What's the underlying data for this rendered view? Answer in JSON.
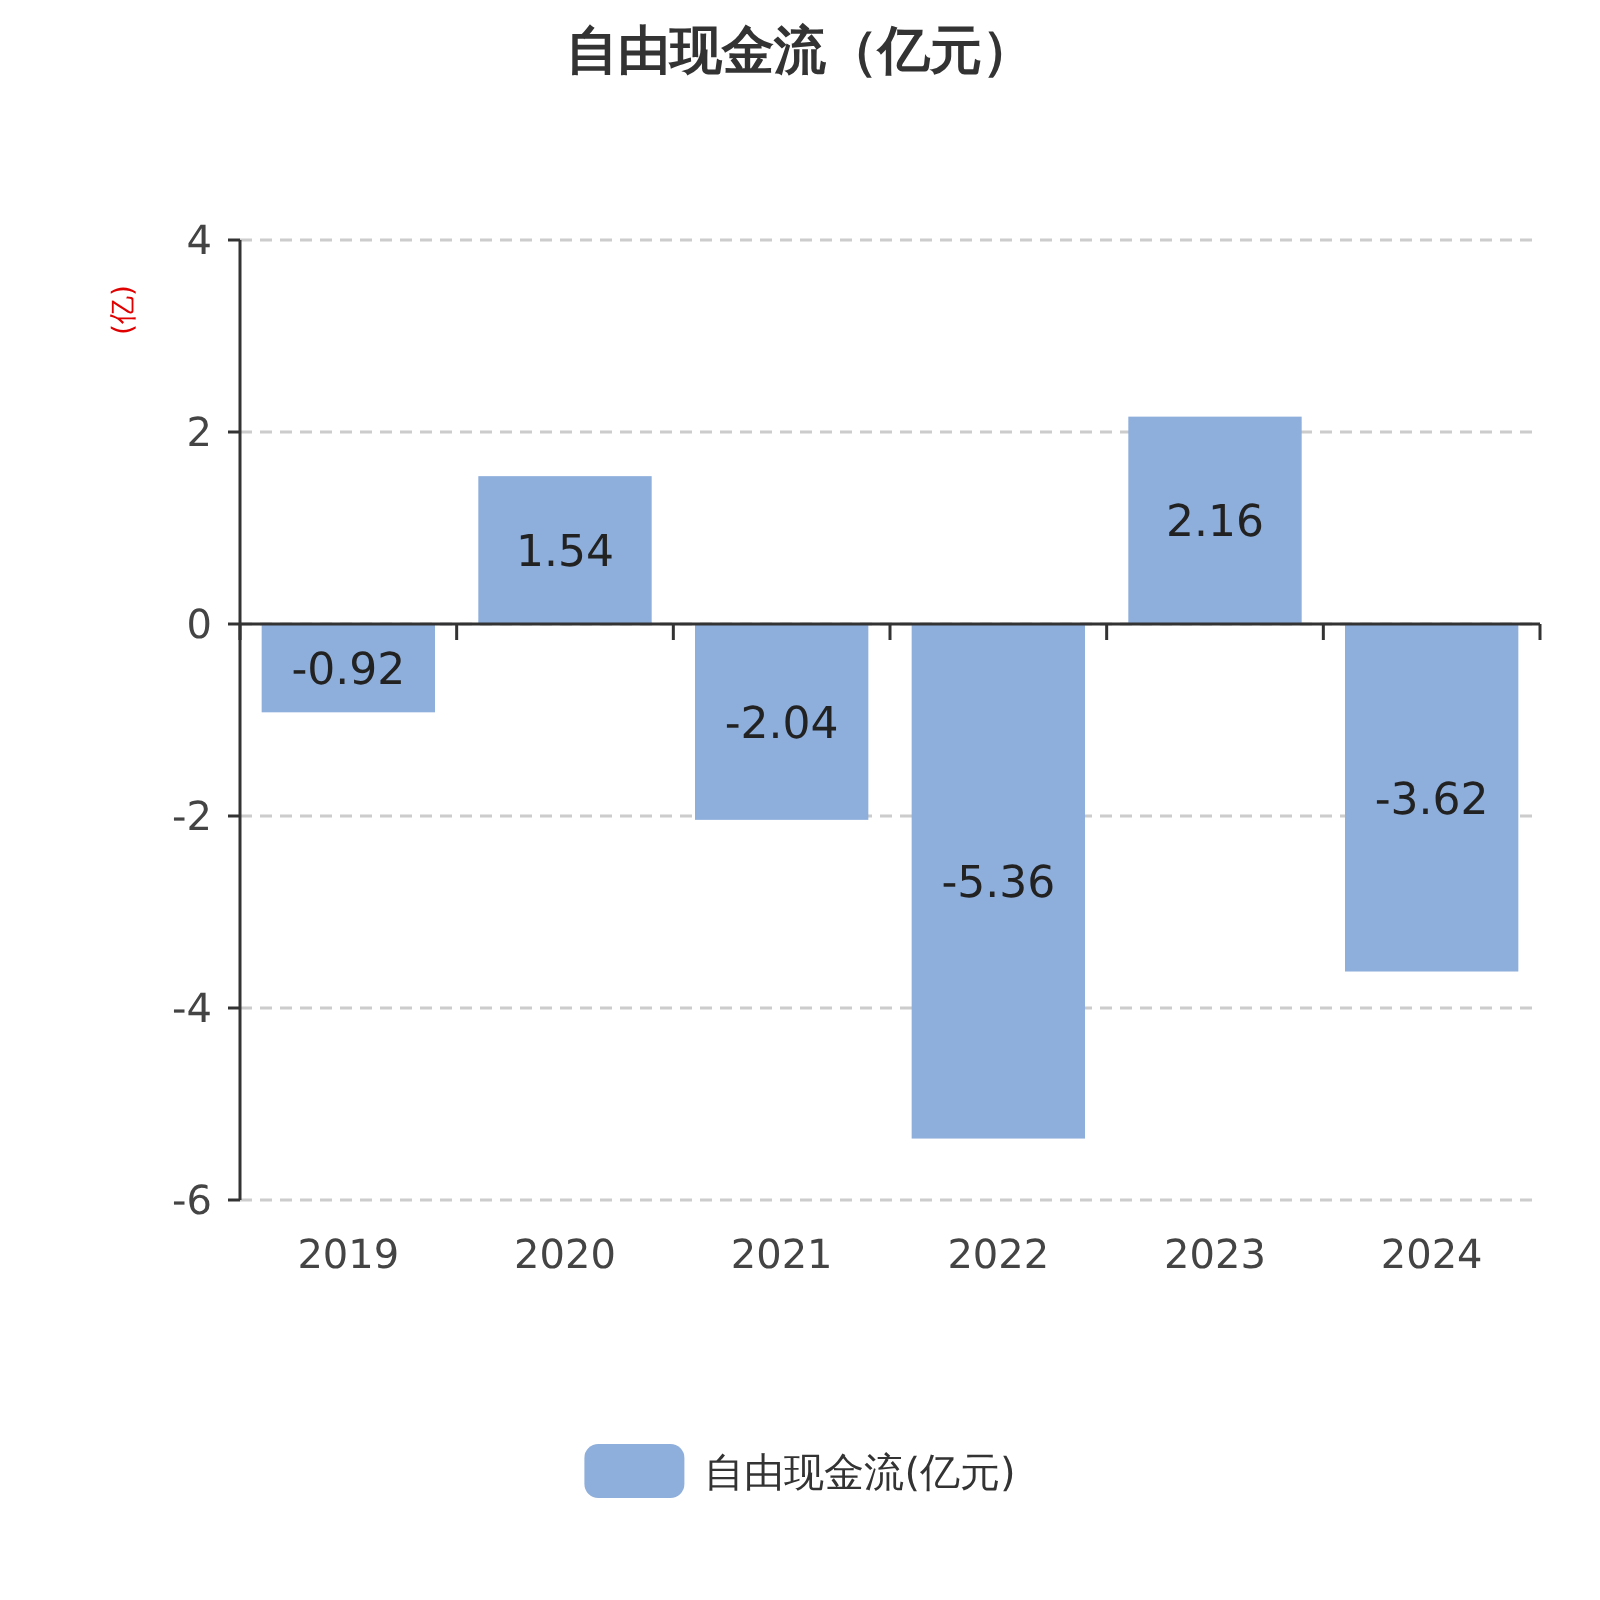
{
  "chart_data": {
    "type": "bar",
    "title": "自由现金流（亿元）",
    "ylabel": "(亿)",
    "categories": [
      "2019",
      "2020",
      "2021",
      "2022",
      "2023",
      "2024"
    ],
    "series": [
      {
        "name": "自由现金流(亿元)",
        "color": "#8eaedb",
        "values": [
          -0.92,
          1.54,
          -2.04,
          -5.36,
          2.16,
          -3.62
        ]
      }
    ],
    "ylim": [
      -6,
      4
    ],
    "yticks": [
      -6,
      -4,
      -2,
      0,
      2,
      4
    ],
    "grid": "y",
    "legend": "bottom",
    "data_labels": true
  }
}
